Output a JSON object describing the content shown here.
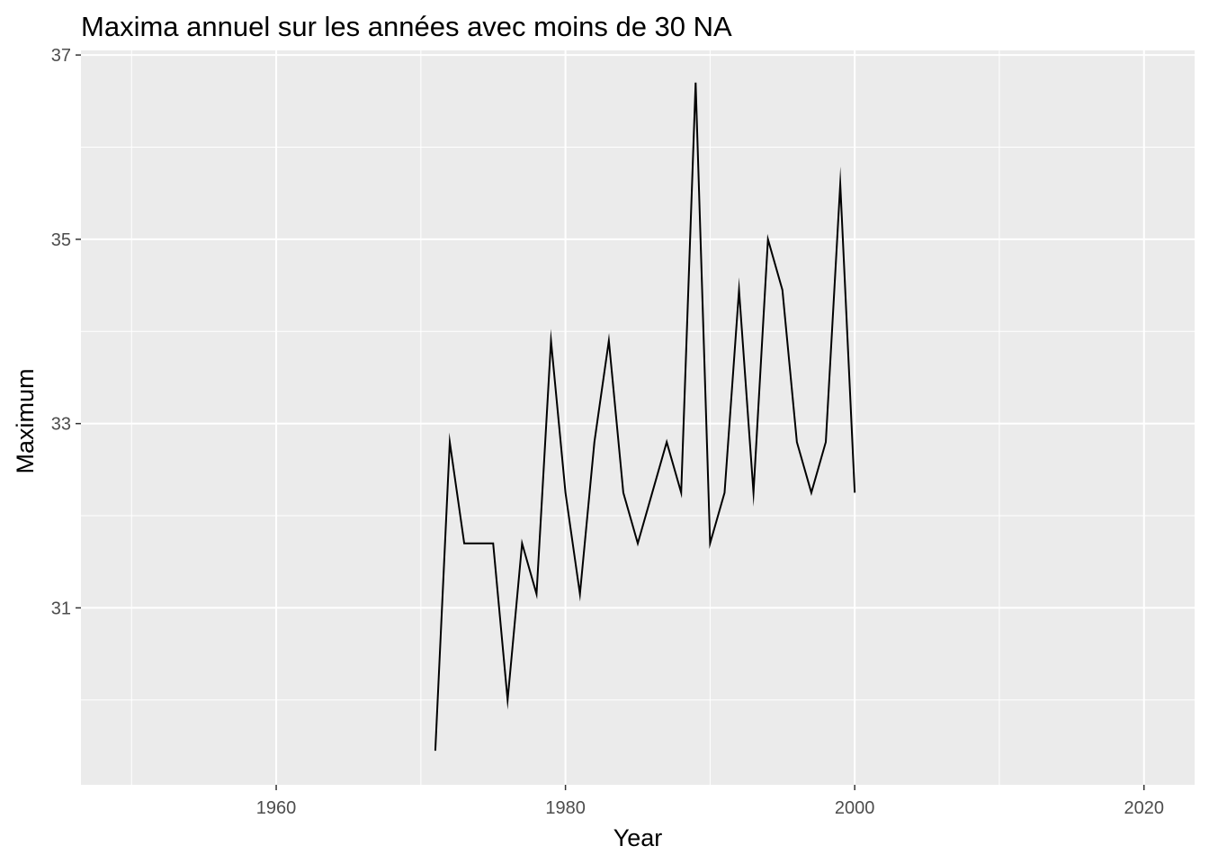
{
  "chart_data": {
    "type": "line",
    "title": "Maxima annuel sur les années avec moins de 30 NA",
    "xlabel": "Year",
    "ylabel": "Maximum",
    "xlim": [
      1946.5,
      2023.5
    ],
    "ylim": [
      29.08,
      37.05
    ],
    "x_ticks": [
      1960,
      1980,
      2000,
      2020
    ],
    "x_minor": [
      1950,
      1970,
      1990,
      2010
    ],
    "y_ticks": [
      31,
      33,
      35,
      37
    ],
    "y_minor": [
      30,
      32,
      34,
      36
    ],
    "grid": true,
    "colors": {
      "panel": "#ebebeb",
      "grid": "#ffffff",
      "line": "#000000",
      "tick": "#333333"
    },
    "series": [
      {
        "x": [
          1971,
          1972,
          1973,
          1974,
          1975,
          1976,
          1977,
          1978,
          1979,
          1980,
          1981,
          1982,
          1983,
          1984,
          1985,
          1986,
          1987,
          1988,
          1989,
          1990,
          1991,
          1992,
          1993,
          1994,
          1995,
          1996,
          1997,
          1998,
          1999,
          2000
        ],
        "values": [
          29.45,
          32.8,
          31.7,
          31.7,
          31.7,
          30.0,
          31.7,
          31.15,
          33.9,
          32.25,
          31.15,
          32.8,
          33.9,
          32.25,
          31.7,
          32.25,
          32.8,
          32.25,
          36.7,
          31.7,
          32.25,
          34.45,
          32.25,
          35.0,
          34.45,
          32.8,
          32.25,
          32.8,
          35.6,
          32.25
        ]
      }
    ]
  }
}
